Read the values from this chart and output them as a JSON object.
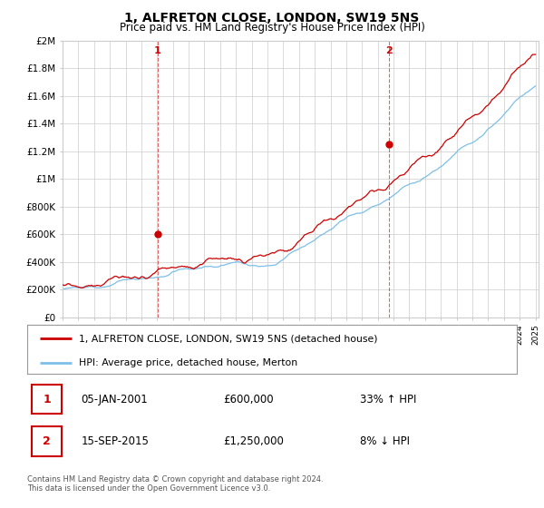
{
  "title": "1, ALFRETON CLOSE, LONDON, SW19 5NS",
  "subtitle": "Price paid vs. HM Land Registry's House Price Index (HPI)",
  "legend_line1": "1, ALFRETON CLOSE, LONDON, SW19 5NS (detached house)",
  "legend_line2": "HPI: Average price, detached house, Merton",
  "annotation1_date": "05-JAN-2001",
  "annotation1_price": "£600,000",
  "annotation1_hpi": "33% ↑ HPI",
  "annotation2_date": "15-SEP-2015",
  "annotation2_price": "£1,250,000",
  "annotation2_hpi": "8% ↓ HPI",
  "footer": "Contains HM Land Registry data © Crown copyright and database right 2024.\nThis data is licensed under the Open Government Licence v3.0.",
  "hpi_color": "#7dbfe8",
  "price_color": "#cc0000",
  "annotation_color": "#cc0000",
  "background_color": "#ffffff",
  "grid_color": "#cccccc",
  "ylim": [
    0,
    2000000
  ],
  "yticks": [
    0,
    200000,
    400000,
    600000,
    800000,
    1000000,
    1200000,
    1400000,
    1600000,
    1800000,
    2000000
  ],
  "ytick_labels": [
    "£0",
    "£200K",
    "£400K",
    "£600K",
    "£800K",
    "£1M",
    "£1.2M",
    "£1.4M",
    "£1.6M",
    "£1.8M",
    "£2M"
  ],
  "sale1_year": 2001.04,
  "sale1_price": 600000,
  "sale2_year": 2015.71,
  "sale2_price": 1250000,
  "start_year": 1995,
  "end_year": 2025
}
